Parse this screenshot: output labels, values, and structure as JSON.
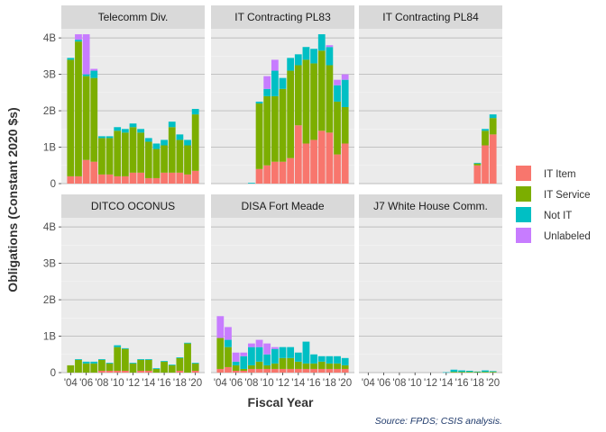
{
  "chart_data": {
    "type": "bar",
    "stacked": true,
    "facets": [
      "Telecomm Div.",
      "IT Contracting PL83",
      "IT Contracting PL84",
      "DITCO OCONUS",
      "DISA Fort Meade",
      "J7 White House Comm."
    ],
    "x": [
      2004,
      2005,
      2006,
      2007,
      2008,
      2009,
      2010,
      2011,
      2012,
      2013,
      2014,
      2015,
      2016,
      2017,
      2018,
      2019,
      2020
    ],
    "x_tick_labels": [
      "'04",
      "'06",
      "'08",
      "'10",
      "'12",
      "'14",
      "'16",
      "'18",
      "'20"
    ],
    "y_tick_labels": [
      "0",
      "1B",
      "2B",
      "3B",
      "4B"
    ],
    "ylim": [
      0,
      4.25
    ],
    "xlabel": "Fiscal Year",
    "ylabel": "Obligations (Constant 2020 $s)",
    "caption": "Source: FPDS; CSIS analysis.",
    "legend": {
      "position": "right"
    },
    "series": [
      {
        "name": "IT Item",
        "color": "#f8766d"
      },
      {
        "name": "IT Service",
        "color": "#7cae00"
      },
      {
        "name": "Not IT",
        "color": "#00bfc4"
      },
      {
        "name": "Unlabeled",
        "color": "#c77cff"
      }
    ],
    "panels": [
      {
        "facet": "Telecomm Div.",
        "values": {
          "IT Item": [
            0.2,
            0.2,
            0.65,
            0.6,
            0.25,
            0.25,
            0.2,
            0.2,
            0.3,
            0.3,
            0.15,
            0.15,
            0.3,
            0.3,
            0.3,
            0.25,
            0.35
          ],
          "IT Service": [
            3.2,
            3.7,
            2.3,
            2.3,
            1.0,
            1.0,
            1.25,
            1.2,
            1.25,
            1.1,
            1.0,
            0.8,
            0.75,
            1.25,
            0.9,
            0.8,
            1.55
          ],
          "Not IT": [
            0.05,
            0.05,
            0.05,
            0.2,
            0.05,
            0.05,
            0.1,
            0.1,
            0.1,
            0.1,
            0.1,
            0.15,
            0.15,
            0.15,
            0.15,
            0.15,
            0.15
          ],
          "Unlabeled": [
            0.0,
            0.15,
            1.1,
            0.05,
            0.0,
            0.0,
            0.0,
            0.0,
            0.0,
            0.0,
            0.0,
            0.0,
            0.0,
            0.0,
            0.0,
            0.0,
            0.0
          ]
        }
      },
      {
        "facet": "IT Contracting PL83",
        "values": {
          "IT Item": [
            0.0,
            0.0,
            0.0,
            0.0,
            0.0,
            0.4,
            0.5,
            0.6,
            0.6,
            0.7,
            1.6,
            1.1,
            1.2,
            1.45,
            1.4,
            0.8,
            1.1
          ],
          "IT Service": [
            0.0,
            0.0,
            0.0,
            0.0,
            0.0,
            1.8,
            1.9,
            1.8,
            2.0,
            2.4,
            1.65,
            2.3,
            2.1,
            2.2,
            1.85,
            1.45,
            1.0
          ],
          "Not IT": [
            0.0,
            0.0,
            0.0,
            0.0,
            0.02,
            0.05,
            0.2,
            0.7,
            0.3,
            0.35,
            0.3,
            0.35,
            0.4,
            0.45,
            0.5,
            0.45,
            0.75
          ],
          "Unlabeled": [
            0.0,
            0.0,
            0.0,
            0.0,
            0.0,
            0.0,
            0.35,
            0.3,
            0.0,
            0.0,
            0.0,
            0.0,
            0.0,
            0.0,
            0.05,
            0.15,
            0.15
          ]
        }
      },
      {
        "facet": "IT Contracting PL84",
        "values": {
          "IT Item": [
            0.0,
            0.0,
            0.0,
            0.0,
            0.0,
            0.0,
            0.0,
            0.0,
            0.0,
            0.0,
            0.0,
            0.0,
            0.0,
            0.0,
            0.5,
            1.05,
            1.35
          ],
          "IT Service": [
            0.0,
            0.0,
            0.0,
            0.0,
            0.0,
            0.0,
            0.0,
            0.0,
            0.0,
            0.0,
            0.0,
            0.0,
            0.0,
            0.0,
            0.05,
            0.4,
            0.45
          ],
          "Not IT": [
            0.0,
            0.0,
            0.0,
            0.0,
            0.0,
            0.0,
            0.0,
            0.0,
            0.0,
            0.0,
            0.0,
            0.0,
            0.0,
            0.0,
            0.02,
            0.05,
            0.1
          ],
          "Unlabeled": [
            0.0,
            0.0,
            0.0,
            0.0,
            0.0,
            0.0,
            0.0,
            0.0,
            0.0,
            0.0,
            0.0,
            0.0,
            0.0,
            0.0,
            0.0,
            0.0,
            0.0
          ]
        }
      },
      {
        "facet": "DITCO OCONUS",
        "values": {
          "IT Item": [
            0.0,
            0.0,
            0.0,
            0.0,
            0.05,
            0.05,
            0.05,
            0.05,
            0.0,
            0.05,
            0.05,
            0.0,
            0.0,
            0.0,
            0.05,
            0.0,
            0.05
          ],
          "IT Service": [
            0.2,
            0.35,
            0.25,
            0.25,
            0.3,
            0.2,
            0.65,
            0.6,
            0.25,
            0.3,
            0.3,
            0.1,
            0.3,
            0.2,
            0.35,
            0.8,
            0.2
          ],
          "Not IT": [
            0.0,
            0.02,
            0.05,
            0.05,
            0.02,
            0.02,
            0.05,
            0.02,
            0.02,
            0.02,
            0.02,
            0.02,
            0.02,
            0.02,
            0.02,
            0.02,
            0.02
          ],
          "Unlabeled": [
            0.0,
            0.0,
            0.0,
            0.0,
            0.0,
            0.0,
            0.0,
            0.0,
            0.0,
            0.0,
            0.0,
            0.0,
            0.0,
            0.0,
            0.0,
            0.0,
            0.0
          ]
        }
      },
      {
        "facet": "DISA Fort Meade",
        "values": {
          "IT Item": [
            0.1,
            0.15,
            0.05,
            0.05,
            0.1,
            0.1,
            0.1,
            0.1,
            0.1,
            0.1,
            0.1,
            0.1,
            0.1,
            0.1,
            0.1,
            0.1,
            0.1
          ],
          "IT Service": [
            0.85,
            0.55,
            0.15,
            0.05,
            0.1,
            0.2,
            0.1,
            0.15,
            0.3,
            0.3,
            0.2,
            0.15,
            0.15,
            0.2,
            0.15,
            0.15,
            0.1
          ],
          "Not IT": [
            0.0,
            0.2,
            0.1,
            0.35,
            0.5,
            0.4,
            0.3,
            0.4,
            0.3,
            0.3,
            0.25,
            0.6,
            0.25,
            0.15,
            0.2,
            0.2,
            0.2
          ],
          "Unlabeled": [
            0.6,
            0.35,
            0.25,
            0.1,
            0.1,
            0.2,
            0.3,
            0.05,
            0.0,
            0.0,
            0.0,
            0.0,
            0.0,
            0.0,
            0.0,
            0.0,
            0.0
          ]
        }
      },
      {
        "facet": "J7 White House Comm.",
        "values": {
          "IT Item": [
            0.0,
            0.0,
            0.0,
            0.0,
            0.0,
            0.0,
            0.0,
            0.0,
            0.0,
            0.0,
            0.0,
            0.0,
            0.0,
            0.0,
            0.0,
            0.0,
            0.0
          ],
          "IT Service": [
            0.0,
            0.0,
            0.0,
            0.0,
            0.0,
            0.0,
            0.0,
            0.0,
            0.0,
            0.0,
            0.0,
            0.02,
            0.02,
            0.02,
            0.02,
            0.02,
            0.02
          ],
          "Not IT": [
            0.0,
            0.0,
            0.0,
            0.0,
            0.0,
            0.0,
            0.0,
            0.0,
            0.0,
            0.0,
            0.01,
            0.06,
            0.04,
            0.03,
            0.01,
            0.04,
            0.02
          ],
          "Unlabeled": [
            0.0,
            0.0,
            0.0,
            0.0,
            0.0,
            0.0,
            0.0,
            0.0,
            0.0,
            0.0,
            0.0,
            0.0,
            0.0,
            0.0,
            0.0,
            0.0,
            0.0
          ]
        }
      }
    ]
  }
}
